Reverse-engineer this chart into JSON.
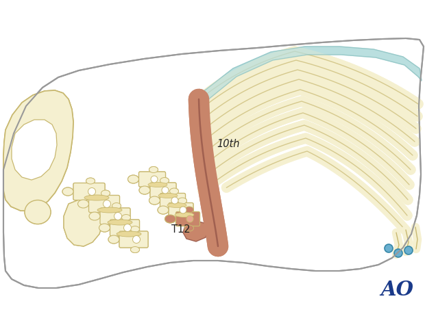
{
  "background_color": "#ffffff",
  "body_outline_color": "#999999",
  "bone_fill_color": "#f5f0d0",
  "bone_outline_color": "#c8b870",
  "bone_shadow_color": "#d8cc90",
  "rib_highlight_color": "#b8dede",
  "highlighted_rib_fill": "#c8856a",
  "highlighted_rib_edge": "#a06050",
  "highlighted_area_color": "#d4a090",
  "ao_color": "#1a3a8a",
  "small_blue_color": "#6ab0d0",
  "label_10th": "10th",
  "label_T12": "T12",
  "label_AO": "AO",
  "figsize": [
    6.2,
    4.59
  ],
  "dpi": 100
}
